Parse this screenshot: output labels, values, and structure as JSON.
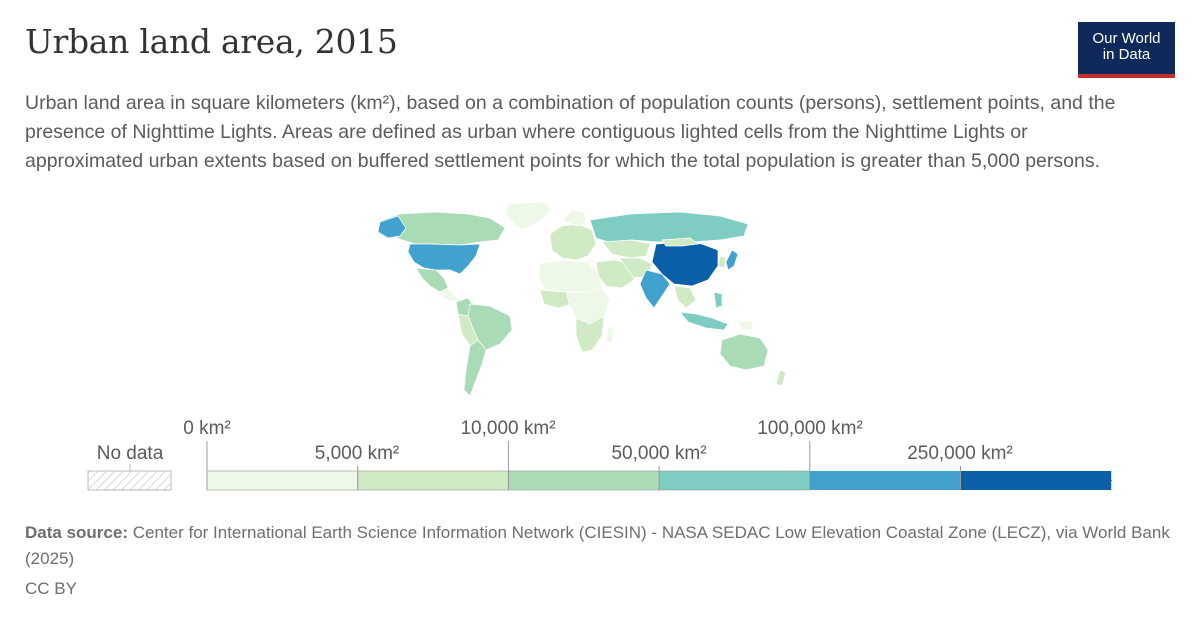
{
  "header": {
    "title": "Urban land area, 2015",
    "subtitle": "Urban land area in square kilometers (km²), based on a combination of population counts (persons), settlement points, and the presence of Nighttime Lights. Areas are defined as urban where contiguous lighted cells from the Nighttime Lights or approximated urban extents based on buffered settlement points for which the total population is greater than 5,000 persons."
  },
  "logo": {
    "line1": "Our World",
    "line2": "in Data",
    "bg": "#0f2a5a",
    "accent": "#c0302f"
  },
  "legend": {
    "no_data_label": "No data",
    "bins": [
      {
        "color": "#edf8e9"
      },
      {
        "color": "#cfeac4"
      },
      {
        "color": "#a9dcb6"
      },
      {
        "color": "#7dcdc3"
      },
      {
        "color": "#41a2cf"
      },
      {
        "color": "#0b5ea8"
      }
    ],
    "upper_labels": [
      "0 km²",
      "10,000 km²",
      "100,000 km²"
    ],
    "lower_labels": [
      "5,000 km²",
      "50,000 km²",
      "250,000 km²"
    ]
  },
  "map": {
    "regions": [
      {
        "name": "China",
        "color": "#0b5ea8"
      },
      {
        "name": "United States",
        "color": "#41a2cf"
      },
      {
        "name": "India",
        "color": "#41a2cf"
      },
      {
        "name": "Russia",
        "color": "#7dcdc3"
      },
      {
        "name": "Canada",
        "color": "#a9dcb6"
      },
      {
        "name": "Brazil",
        "color": "#a9dcb6"
      },
      {
        "name": "Australia",
        "color": "#a9dcb6"
      },
      {
        "name": "Japan",
        "color": "#41a2cf"
      },
      {
        "name": "Indonesia",
        "color": "#7dcdc3"
      },
      {
        "name": "Mexico",
        "color": "#a9dcb6"
      },
      {
        "name": "Argentina",
        "color": "#a9dcb6"
      },
      {
        "name": "Africa",
        "color": "#edf8e9"
      },
      {
        "name": "Europe",
        "color": "#cfeac4"
      },
      {
        "name": "Middle East",
        "color": "#cfeac4"
      },
      {
        "name": "Greenland",
        "color": "#edf8e9"
      },
      {
        "name": "Kazakhstan",
        "color": "#cfeac4"
      }
    ]
  },
  "footer": {
    "source_label": "Data source:",
    "source_text": "Center for International Earth Science Information Network (CIESIN) - NASA SEDAC Low Elevation Coastal Zone (LECZ), via World Bank (2025)",
    "license": "CC BY"
  }
}
